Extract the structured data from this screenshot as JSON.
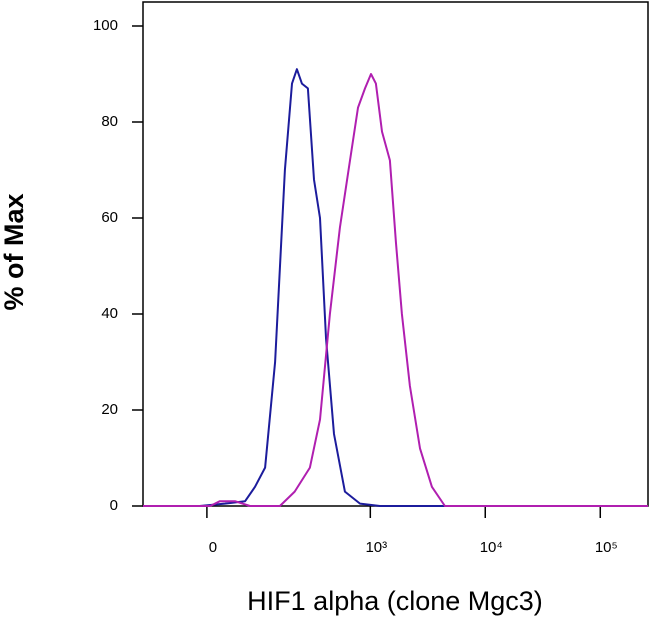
{
  "chart_data": {
    "type": "line",
    "xscale": "biexponential",
    "xlabel": "HIF1 alpha (clone Mgc3)",
    "ylabel": "% of Max",
    "xlim": [
      -126,
      260000
    ],
    "ylim": [
      0,
      105
    ],
    "xticks": [
      0,
      {
        "value": 1000,
        "label": "10³"
      },
      {
        "value": 10000,
        "label": "10⁴"
      },
      {
        "value": 100000,
        "label": "10⁵"
      }
    ],
    "yticks": [
      0,
      20,
      40,
      60,
      80,
      100
    ],
    "series": [
      {
        "color": "#1c1c9c",
        "x": [
          -126,
          -11,
          28,
          64,
          85,
          110,
          139,
          173,
          202,
          224,
          249,
          282,
          320,
          362,
          409,
          481,
          600,
          812,
          1212,
          260000
        ],
        "values": [
          0,
          0,
          0.5,
          1,
          4,
          8,
          30,
          70,
          88,
          91,
          88,
          87,
          68,
          60,
          35,
          15,
          3,
          0.5,
          0,
          0
        ]
      },
      {
        "color": "#b01fb0",
        "x": [
          -126,
          5,
          20,
          45,
          74,
          155,
          214,
          294,
          362,
          443,
          542,
          664,
          780,
          898,
          1013,
          1119,
          1264,
          1482,
          1672,
          1885,
          2212,
          2705,
          3435,
          4461,
          260000
        ],
        "values": [
          0,
          0,
          1,
          1,
          0,
          0,
          3,
          8,
          18,
          40,
          58,
          72,
          83,
          87,
          90,
          88,
          78,
          72,
          55,
          40,
          25,
          12,
          4,
          0,
          0
        ]
      }
    ]
  }
}
